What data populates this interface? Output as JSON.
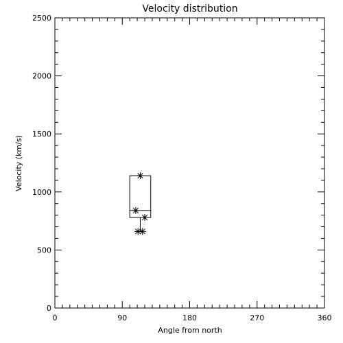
{
  "chart_data": {
    "type": "box",
    "title": "Velocity distribution",
    "xlabel": "Angle from north",
    "ylabel": "Velocity (km/s)",
    "xlim": [
      0,
      360
    ],
    "ylim": [
      0,
      2500
    ],
    "xticks": [
      0,
      90,
      180,
      270,
      360
    ],
    "yticks": [
      0,
      500,
      1000,
      1500,
      2000,
      2500
    ],
    "grid": false,
    "box": {
      "x_left": 100,
      "x_right": 128,
      "q1": 780,
      "median": 840,
      "q3": 1140,
      "whisker_low": 660,
      "whisker_high": 1140
    },
    "points": [
      {
        "x": 114,
        "y": 1140
      },
      {
        "x": 108,
        "y": 840
      },
      {
        "x": 120,
        "y": 780
      },
      {
        "x": 111,
        "y": 660
      },
      {
        "x": 117,
        "y": 660
      }
    ]
  }
}
